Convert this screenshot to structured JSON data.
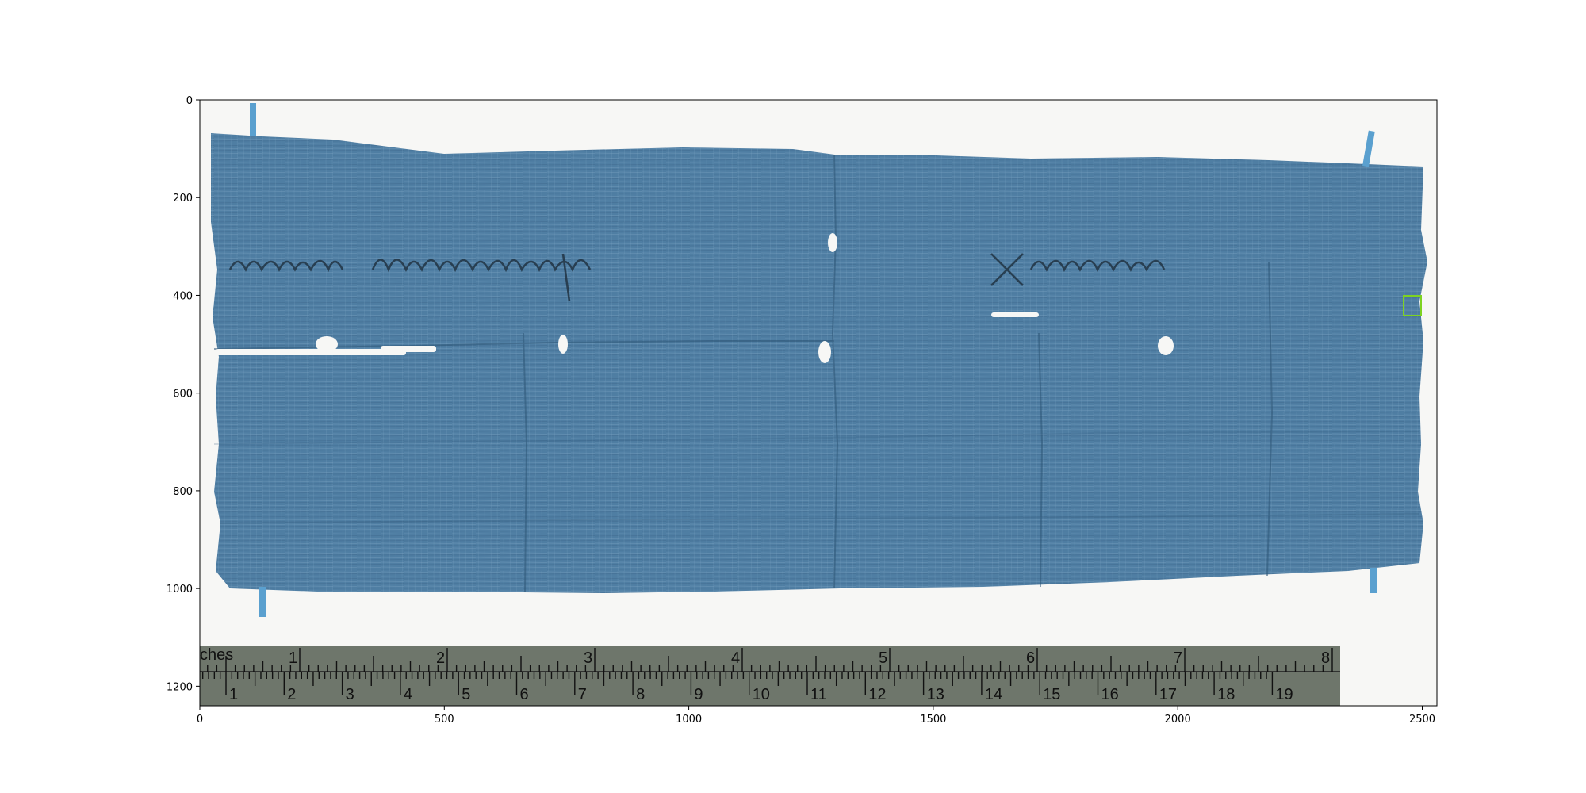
{
  "figure": {
    "x_ticks": [
      "0",
      "500",
      "1000",
      "1500",
      "2000",
      "2500"
    ],
    "y_ticks": [
      "0",
      "200",
      "400",
      "600",
      "800",
      "1000",
      "1200"
    ]
  },
  "ruler": {
    "inch_label": "ches",
    "inch_numbers": [
      "1",
      "2",
      "3",
      "4",
      "5",
      "6",
      "7",
      "8"
    ],
    "cm_numbers": [
      "1",
      "2",
      "3",
      "4",
      "5",
      "6",
      "7",
      "8",
      "9",
      "10",
      "11",
      "12",
      "13",
      "14",
      "15",
      "16",
      "17",
      "18",
      "19"
    ]
  },
  "colors": {
    "papyrus": "#4f7ea3",
    "papyrus_dark": "#3f6a8e",
    "ruler_bg": "#6e766b",
    "highlight_box": "#7ed321",
    "tape": "#5aa0cf"
  },
  "annotation": {
    "highlight_box_icon": "green-rectangle-marker"
  }
}
